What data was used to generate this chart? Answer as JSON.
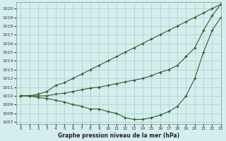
{
  "xlabel": "Graphe pression niveau de la mer (hPa)",
  "ylim": [
    1007,
    1020.5
  ],
  "xlim": [
    -0.5,
    23
  ],
  "yticks": [
    1007,
    1008,
    1009,
    1010,
    1011,
    1012,
    1013,
    1014,
    1015,
    1016,
    1017,
    1018,
    1019,
    1020
  ],
  "xticks": [
    0,
    1,
    2,
    3,
    4,
    5,
    6,
    7,
    8,
    9,
    10,
    11,
    12,
    13,
    14,
    15,
    16,
    17,
    18,
    19,
    20,
    21,
    22,
    23
  ],
  "bg_color": "#d4eeee",
  "grid_color": "#aacccc",
  "line_color": "#2a5e2a",
  "line1_y": [
    1010.0,
    1010.0,
    1010.2,
    1010.5,
    1011.2,
    1011.5,
    1012.0,
    1012.5,
    1013.0,
    1013.5,
    1014.0,
    1014.5,
    1015.0,
    1015.5,
    1016.0,
    1016.5,
    1017.0,
    1017.5,
    1018.0,
    1018.5,
    1019.0,
    1019.5,
    1020.0,
    1020.5
  ],
  "line2_y": [
    1010.0,
    1010.0,
    1010.0,
    1010.0,
    1010.2,
    1010.3,
    1010.5,
    1010.7,
    1010.9,
    1011.0,
    1011.2,
    1011.4,
    1011.6,
    1011.8,
    1012.0,
    1012.3,
    1012.7,
    1013.0,
    1013.5,
    1014.5,
    1015.5,
    1017.5,
    1019.2,
    1020.5
  ],
  "line3_y": [
    1010.0,
    1010.0,
    1009.8,
    1009.7,
    1009.5,
    1009.3,
    1009.0,
    1008.8,
    1008.5,
    1008.5,
    1008.2,
    1008.0,
    1007.5,
    1007.3,
    1007.3,
    1007.5,
    1007.8,
    1008.2,
    1008.8,
    1010.0,
    1012.0,
    1015.0,
    1017.5,
    1019.0
  ]
}
